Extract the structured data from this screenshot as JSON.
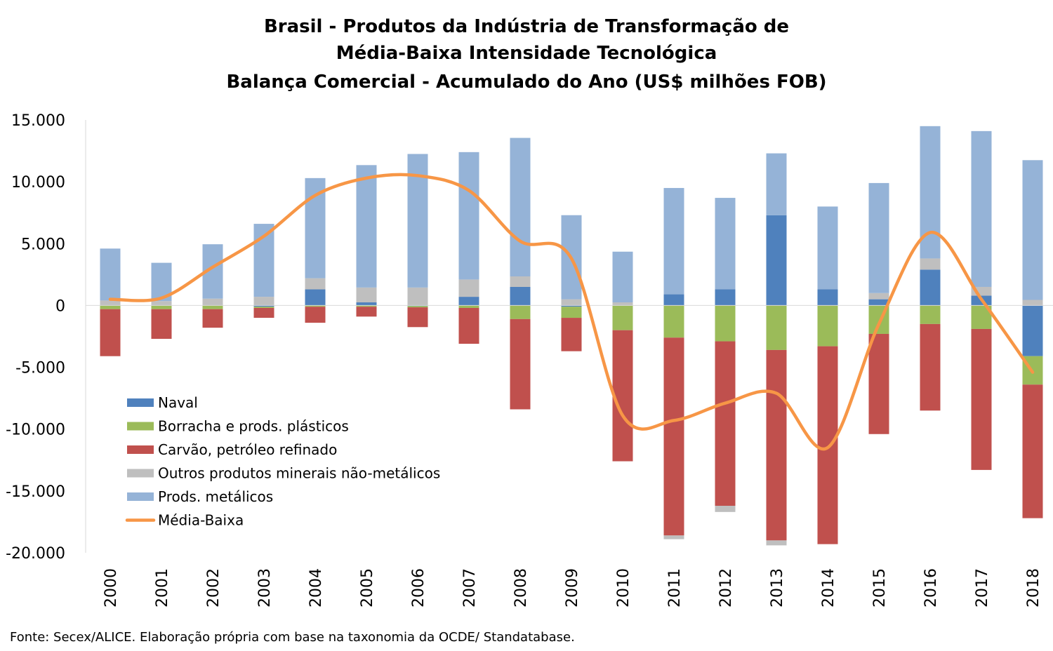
{
  "chart_data": {
    "type": "bar",
    "stacked": true,
    "title_lines": [
      "Brasil - Produtos da Indústria de Transformação de",
      "Média-Baixa Intensidade Tecnológica",
      "Balança Comercial - Acumulado do Ano (US$ milhões FOB)"
    ],
    "categories": [
      "2000",
      "2001",
      "2002",
      "2003",
      "2004",
      "2005",
      "2006",
      "2007",
      "2008",
      "2009",
      "2010",
      "2011",
      "2012",
      "2013",
      "2014",
      "2015",
      "2016",
      "2017",
      "2018"
    ],
    "y_ticks": [
      15000,
      10000,
      5000,
      0,
      -5000,
      -10000,
      -15000,
      -20000
    ],
    "y_tick_labels": [
      "15.000",
      "10.000",
      "5.000",
      "0",
      "-5.000",
      "-10.000",
      "-15.000",
      "-20.000"
    ],
    "ylim": [
      -20000,
      15000
    ],
    "grid": false,
    "legend_position": "bottom-left",
    "series": [
      {
        "name": "Naval",
        "color": "#4F81BD",
        "values": [
          0,
          0,
          0,
          -100,
          1300,
          250,
          -50,
          700,
          1500,
          -100,
          0,
          900,
          1300,
          7300,
          1300,
          500,
          2900,
          800,
          -4100
        ]
      },
      {
        "name": "Borracha e prods. plásticos",
        "color": "#9BBB59",
        "values": [
          -300,
          -300,
          -300,
          -100,
          -100,
          -100,
          -100,
          -200,
          -1100,
          -900,
          -2000,
          -2600,
          -2900,
          -3600,
          -3300,
          -2300,
          -1500,
          -1900,
          -2300
        ]
      },
      {
        "name": "Carvão, petróleo refinado",
        "color": "#C0504D",
        "values": [
          -3800,
          -2400,
          -1500,
          -800,
          -1300,
          -800,
          -1600,
          -2900,
          -7300,
          -2700,
          -10600,
          -16000,
          -13300,
          -15400,
          -16000,
          -8100,
          -7000,
          -11400,
          -10800
        ]
      },
      {
        "name": "Outros produtos minerais não-metálicos",
        "color": "#BFBFBF",
        "values": [
          400,
          350,
          550,
          700,
          900,
          1200,
          1450,
          1400,
          850,
          500,
          250,
          -300,
          -500,
          -400,
          0,
          500,
          900,
          700,
          450
        ]
      },
      {
        "name": "Prods. metálicos",
        "color": "#95B3D7",
        "values": [
          4200,
          3100,
          4400,
          5900,
          8100,
          9900,
          10800,
          10300,
          11200,
          6800,
          4100,
          8600,
          7400,
          5000,
          6700,
          8900,
          10700,
          12600,
          11300
        ]
      }
    ],
    "line": {
      "name": "Média-Baixa",
      "color": "#F79646",
      "values": [
        500,
        600,
        3100,
        5600,
        8900,
        10300,
        10500,
        9300,
        5200,
        3800,
        -8900,
        -9300,
        -7900,
        -7100,
        -11500,
        -1500,
        5900,
        500,
        -5400
      ]
    }
  },
  "source_note": "Fonte: Secex/ALICE. Elaboração própria com base na taxonomia da OCDE/ Standatabase."
}
